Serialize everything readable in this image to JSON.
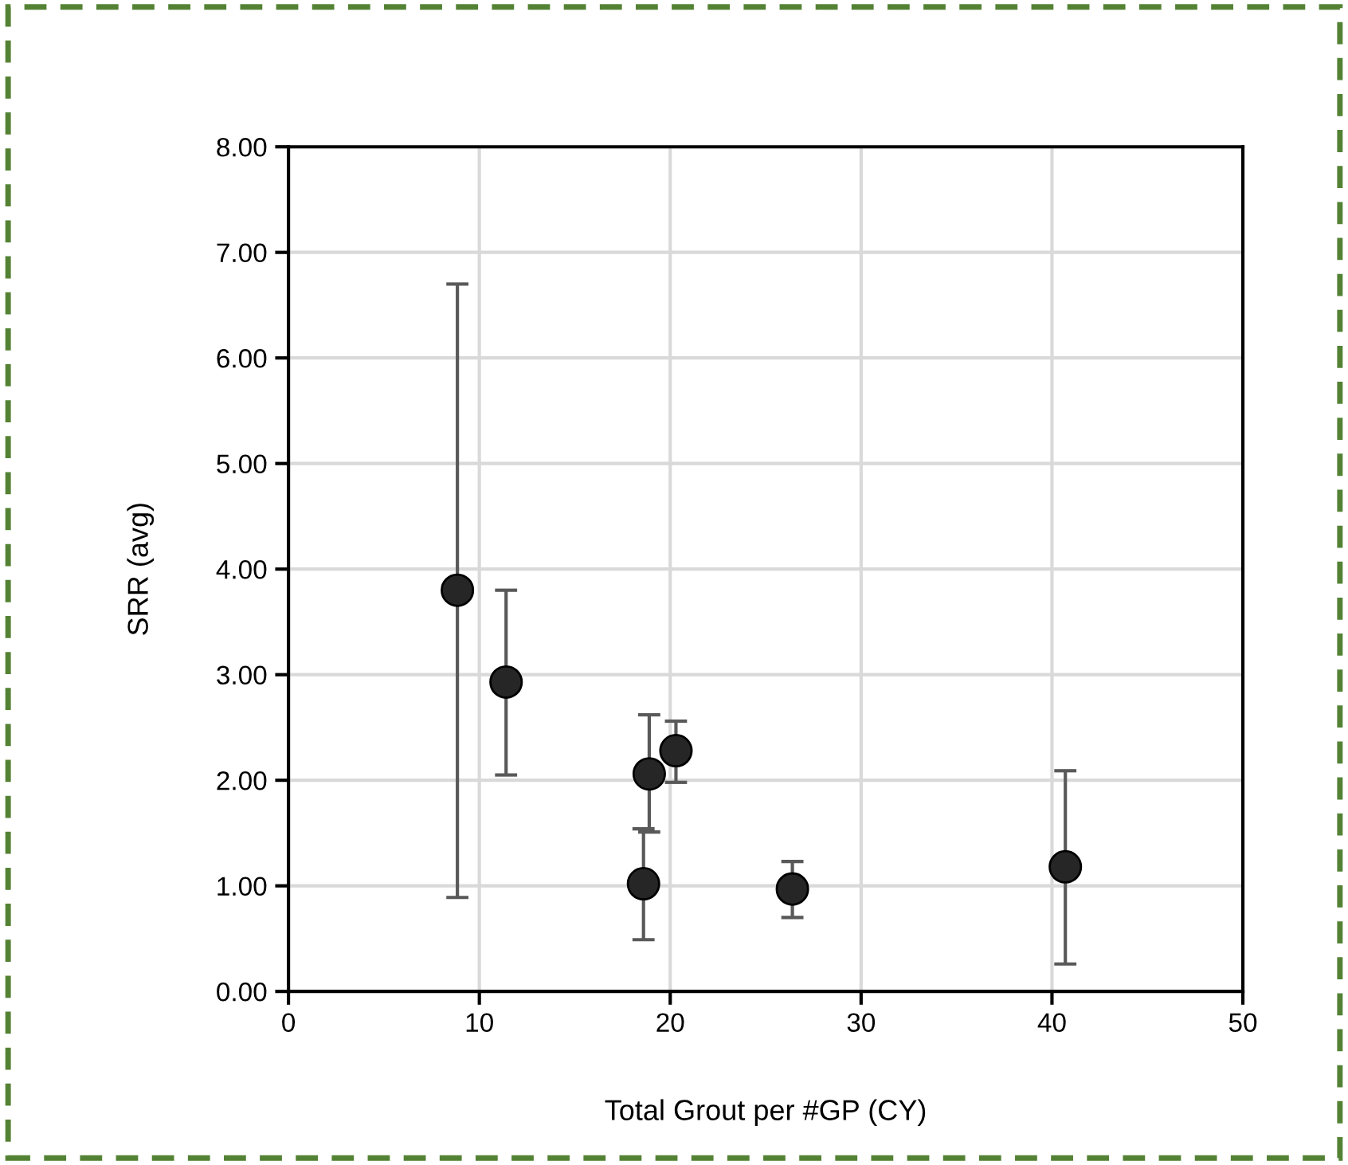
{
  "chart_data": {
    "type": "scatter",
    "xlabel": "Total Grout per #GP (CY)",
    "ylabel": "SRR (avg)",
    "x": [
      8.85,
      11.4,
      18.9,
      18.6,
      20.3,
      26.4,
      40.7
    ],
    "values": [
      3.8,
      2.93,
      2.06,
      1.02,
      2.28,
      0.97,
      1.18
    ],
    "errors": [
      [
        0.89,
        6.7
      ],
      [
        2.05,
        3.8
      ],
      [
        1.51,
        2.62
      ],
      [
        0.49,
        1.54
      ],
      [
        1.98,
        2.56
      ],
      [
        0.7,
        1.23
      ],
      [
        0.26,
        2.09
      ]
    ],
    "color": "#262626",
    "marker": "circle",
    "grid": true,
    "xlim": [
      0,
      50
    ],
    "xticks": [
      0,
      10,
      20,
      30,
      40,
      50
    ],
    "ylim": [
      0,
      8
    ],
    "yticks": [
      {
        "value": 0,
        "label": "0.00"
      },
      {
        "value": 1,
        "label": "1.00"
      },
      {
        "value": 2,
        "label": "2.00"
      },
      {
        "value": 3,
        "label": "3.00"
      },
      {
        "value": 4,
        "label": "4.00"
      },
      {
        "value": 5,
        "label": "5.00"
      },
      {
        "value": 6,
        "label": "6.00"
      },
      {
        "value": 7,
        "label": "7.00"
      },
      {
        "value": 8,
        "label": "8.00"
      }
    ]
  }
}
